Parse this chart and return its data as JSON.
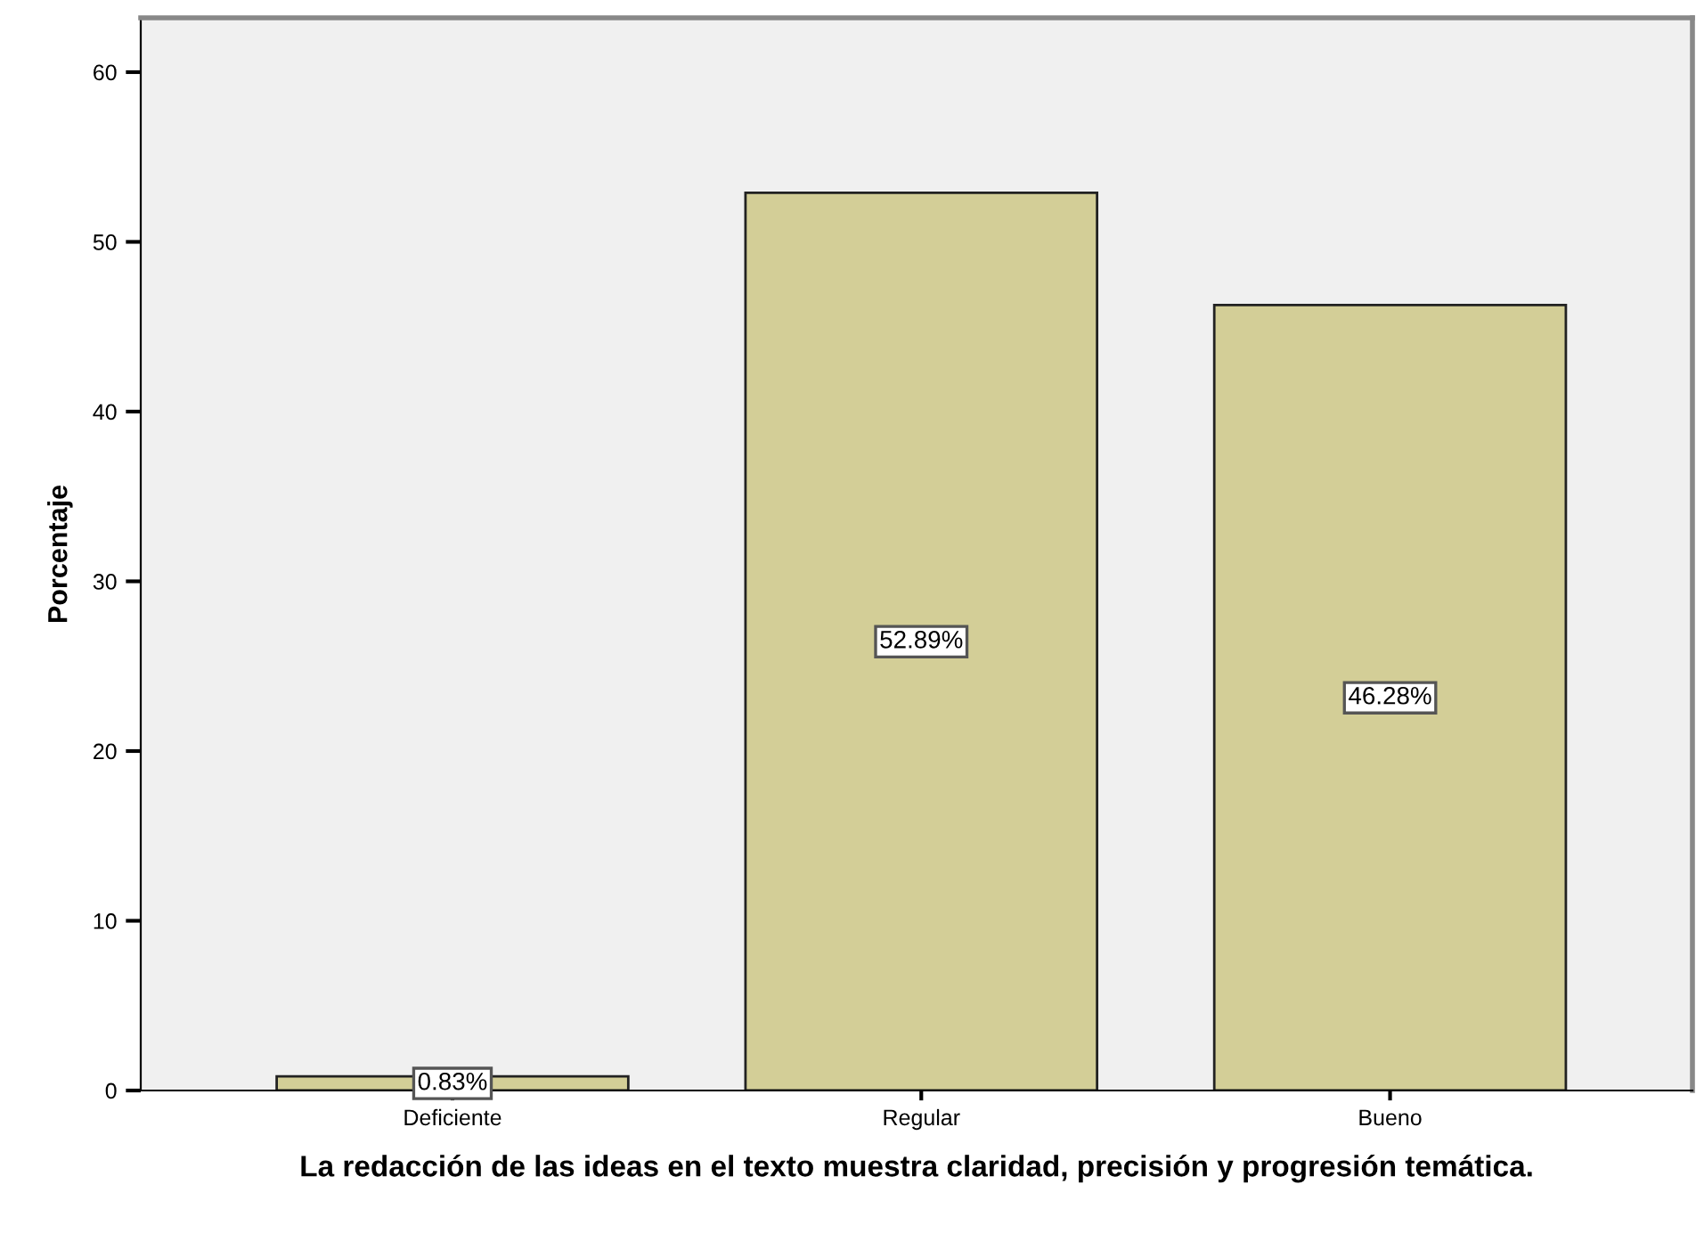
{
  "chart_data": {
    "type": "bar",
    "xlabel": "La redacción de las ideas en el texto muestra claridad, precisión y progresión temática.",
    "ylabel": "Porcentaje",
    "categories": [
      "Deficiente",
      "Regular",
      "Bueno"
    ],
    "values": [
      0.83,
      52.89,
      46.28
    ],
    "value_labels": [
      "0.83%",
      "52.89%",
      "46.28%"
    ],
    "color": "#d3ce97",
    "ylim": [
      0,
      63.2
    ],
    "yticks": [
      0,
      10,
      20,
      30,
      40,
      50,
      60
    ],
    "grid": false
  }
}
